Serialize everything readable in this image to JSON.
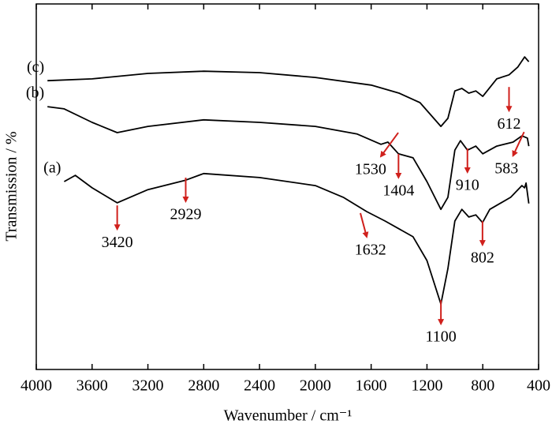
{
  "chart_data": {
    "type": "line",
    "xlabel": "Wavenumber / cm⁻¹",
    "ylabel": "Transmission / %",
    "xlim": [
      4000,
      400
    ],
    "xticks": [
      4000,
      3600,
      3200,
      2800,
      2400,
      2000,
      1600,
      1200,
      800,
      400
    ],
    "ylim": [
      0,
      100
    ],
    "series": [
      {
        "name": "(a)",
        "color": "#000000",
        "x": [
          3800,
          3720,
          3600,
          3420,
          3200,
          2929,
          2800,
          2400,
          2000,
          1800,
          1632,
          1500,
          1300,
          1200,
          1100,
          1050,
          1000,
          950,
          900,
          850,
          802,
          750,
          600,
          520,
          500,
          490,
          470
        ],
        "values": [
          51.4,
          53.1,
          49.7,
          45.6,
          49.2,
          51.8,
          53.6,
          52.5,
          50.3,
          47.1,
          43.2,
          40.6,
          36.3,
          29.8,
          17.9,
          27.6,
          40.6,
          43.8,
          41.7,
          42.3,
          40.2,
          43.8,
          47.1,
          50.3,
          49.7,
          51.0,
          45.4
        ]
      },
      {
        "name": "(b)",
        "color": "#000000",
        "x": [
          3920,
          3800,
          3600,
          3420,
          3200,
          2800,
          2400,
          2000,
          1700,
          1530,
          1480,
          1404,
          1300,
          1200,
          1100,
          1050,
          1000,
          960,
          910,
          850,
          800,
          700,
          583,
          520,
          480,
          470
        ],
        "values": [
          71.9,
          71.3,
          67.6,
          64.8,
          66.5,
          68.3,
          67.6,
          66.5,
          64.4,
          61.6,
          62.2,
          59.0,
          57.9,
          51.4,
          43.8,
          47.1,
          60.0,
          62.6,
          60.0,
          61.1,
          59.0,
          61.1,
          62.2,
          63.9,
          63.3,
          61.1
        ]
      },
      {
        "name": "(c)",
        "color": "#000000",
        "x": [
          3920,
          3600,
          3200,
          2800,
          2400,
          2000,
          1600,
          1400,
          1250,
          1100,
          1050,
          1000,
          950,
          900,
          850,
          800,
          700,
          612,
          550,
          500,
          470
        ],
        "values": [
          79.0,
          79.5,
          81.0,
          81.6,
          81.2,
          79.9,
          77.8,
          75.6,
          73.0,
          66.5,
          68.7,
          76.2,
          76.9,
          75.6,
          76.2,
          74.7,
          79.5,
          80.6,
          82.7,
          85.5,
          84.2
        ]
      }
    ],
    "annotations": [
      {
        "label": "3420",
        "x": 3420,
        "y": 38.4
      },
      {
        "label": "2929",
        "x": 2929,
        "y": 46.0
      },
      {
        "label": "1632",
        "x": 1632,
        "y": 36.3
      },
      {
        "label": "1100",
        "x": 1100,
        "y": 12.5
      },
      {
        "label": "802",
        "x": 802,
        "y": 34.1
      },
      {
        "label": "1530",
        "x": 1530,
        "y": 58.3
      },
      {
        "label": "1404",
        "x": 1404,
        "y": 52.5
      },
      {
        "label": "910",
        "x": 910,
        "y": 54.0
      },
      {
        "label": "583",
        "x": 583,
        "y": 58.5
      },
      {
        "label": "612",
        "x": 612,
        "y": 70.8
      }
    ],
    "arrow_color": "#d0201c"
  }
}
